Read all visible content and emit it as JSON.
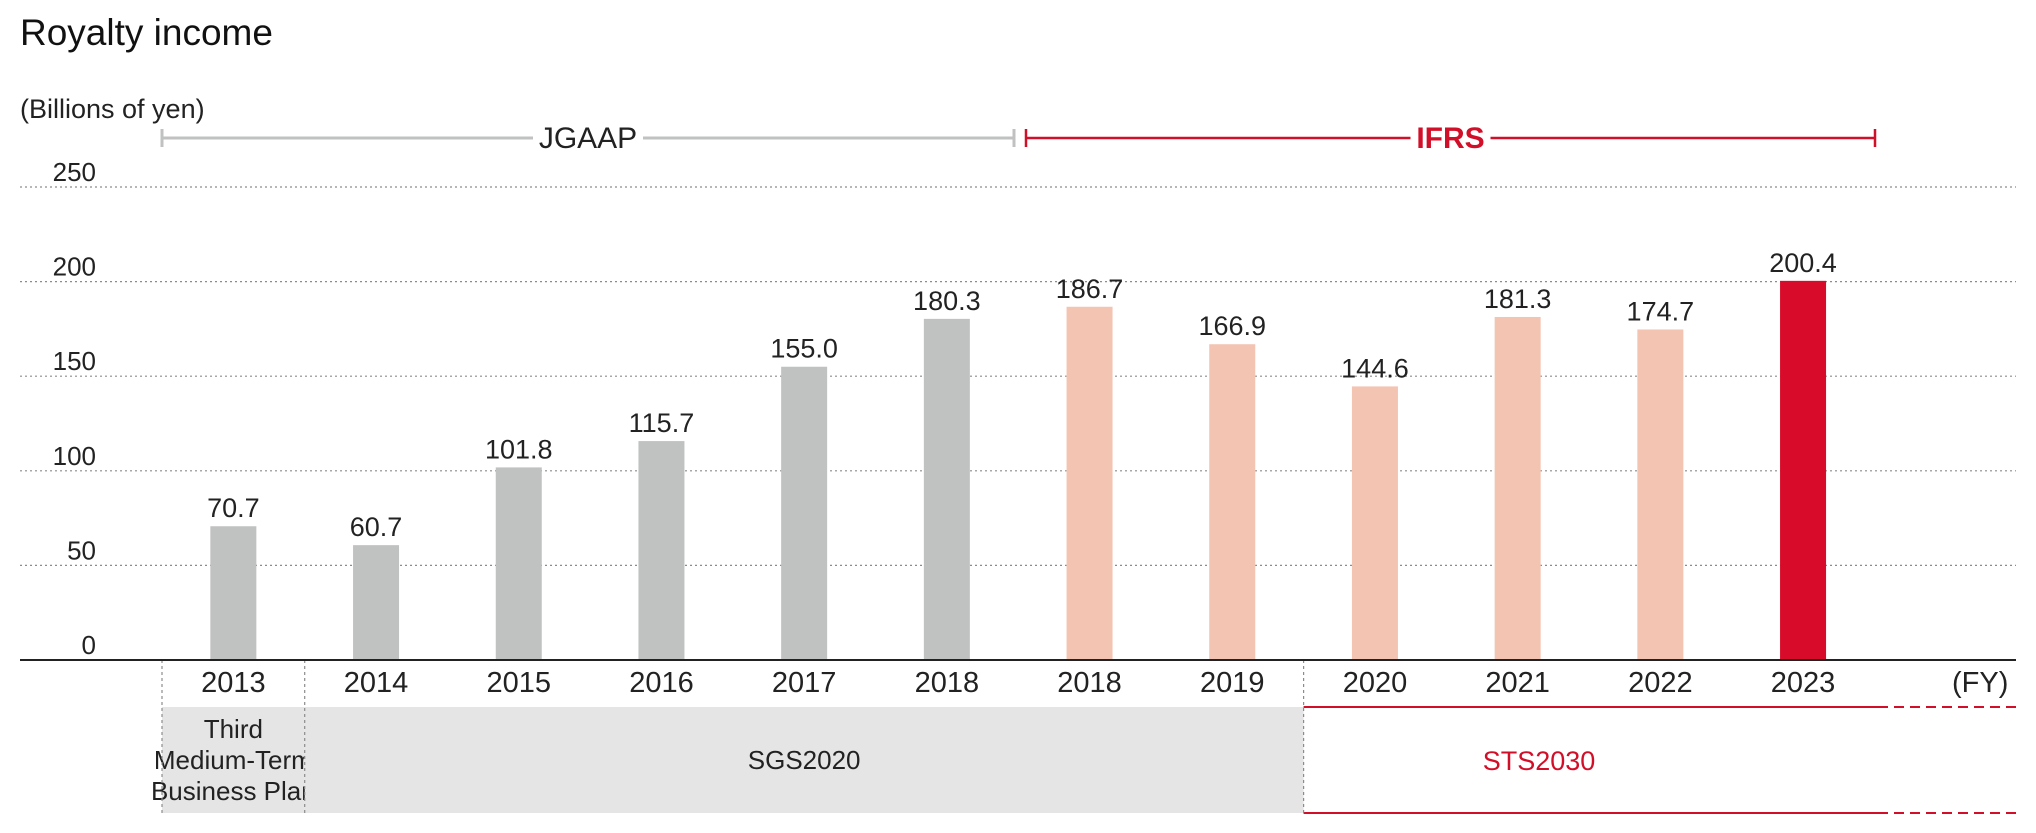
{
  "chart_data": {
    "type": "bar",
    "title": "Royalty income",
    "ylabel": "(Billions of yen)",
    "xunit": "(FY)",
    "ylim": [
      0,
      250
    ],
    "yticks": [
      0,
      50,
      100,
      150,
      200,
      250
    ],
    "grid": true,
    "categories": [
      "2013",
      "2014",
      "2015",
      "2016",
      "2017",
      "2018",
      "2018",
      "2019",
      "2020",
      "2021",
      "2022",
      "2023"
    ],
    "values": [
      70.7,
      60.7,
      101.8,
      115.7,
      155.0,
      180.3,
      186.7,
      166.9,
      144.6,
      181.3,
      174.7,
      200.4
    ],
    "value_labels": [
      "70.7",
      "60.7",
      "101.8",
      "115.7",
      "155.0",
      "180.3",
      "186.7",
      "166.9",
      "144.6",
      "181.3",
      "174.7",
      "200.4"
    ],
    "bar_colors": [
      "#c0c1c1",
      "#c0c1c1",
      "#c0c1c1",
      "#c0c1c1",
      "#c0c1c1",
      "#c0c1c1",
      "#f3c4b2",
      "#f3c4b2",
      "#f3c4b2",
      "#f3c4b2",
      "#f3c4b2",
      "#d80c2a"
    ],
    "accounting_standards": [
      {
        "label": "JGAAP",
        "from_index": 0,
        "to_index": 5,
        "color": "#c0c1c1"
      },
      {
        "label": "IFRS",
        "from_index": 6,
        "to_index": 11,
        "color": "#d20f28"
      }
    ],
    "plans": [
      {
        "lines": [
          "Third",
          "Medium-Term",
          "Business Plan"
        ],
        "from_index": 0,
        "to_index": 0
      },
      {
        "lines": [
          "SGS2020"
        ],
        "from_index": 1,
        "to_index": 7
      },
      {
        "lines": [
          "STS2030"
        ],
        "from_index": 8,
        "to_index": 11,
        "continues": true
      }
    ]
  },
  "colors": {
    "jgaap": "#c0c1c1",
    "ifrs_pale": "#f3c4b2",
    "highlight": "#d80c2a",
    "accent_red": "#d20f28",
    "plan_fill": "#e5e5e5"
  }
}
